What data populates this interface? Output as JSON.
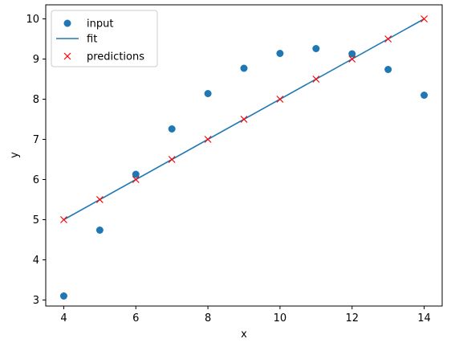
{
  "chart_data": {
    "type": "scatter",
    "xlabel": "x",
    "ylabel": "y",
    "xlim": [
      3.5,
      14.5
    ],
    "ylim": [
      2.85,
      10.35
    ],
    "xticks": [
      4,
      6,
      8,
      10,
      12,
      14
    ],
    "yticks": [
      3,
      4,
      5,
      6,
      7,
      8,
      9,
      10
    ],
    "grid": false,
    "legend_position": "top-left",
    "series": [
      {
        "name": "input",
        "kind": "scatter",
        "marker": "circle",
        "color": "#1f77b4",
        "x": [
          4,
          5,
          6,
          7,
          8,
          9,
          10,
          11,
          12,
          13,
          14
        ],
        "y": [
          3.1,
          4.74,
          6.13,
          7.26,
          8.14,
          8.77,
          9.14,
          9.26,
          9.13,
          8.74,
          8.1
        ]
      },
      {
        "name": "fit",
        "kind": "line",
        "color": "#1f77b4",
        "x": [
          4,
          14
        ],
        "y": [
          5.0,
          10.0
        ]
      },
      {
        "name": "predictions",
        "kind": "scatter",
        "marker": "x",
        "color": "#ff0000",
        "x": [
          4,
          5,
          6,
          7,
          8,
          9,
          10,
          11,
          12,
          13,
          14
        ],
        "y": [
          5.0,
          5.5,
          6.0,
          6.5,
          7.0,
          7.5,
          8.0,
          8.5,
          9.0,
          9.5,
          10.0
        ]
      }
    ]
  }
}
